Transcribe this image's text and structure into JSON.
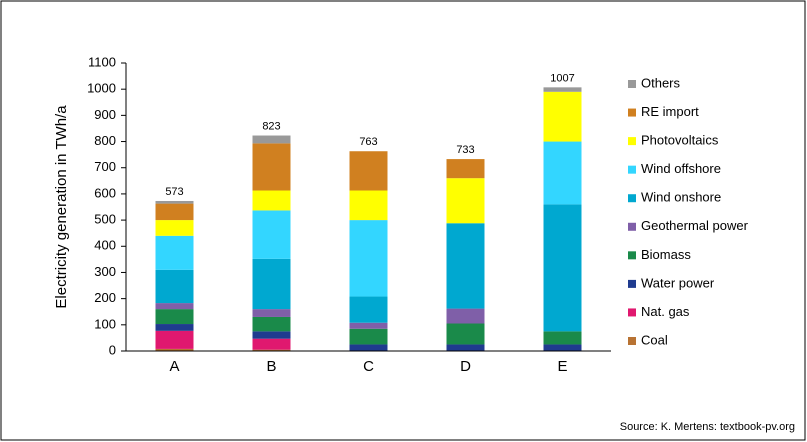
{
  "chart_data": {
    "type": "stacked_bar",
    "y_label": "Electricity generation in TWh/a",
    "source": "Source: K. Mertens: textbook-pv.org",
    "categories": [
      "A",
      "B",
      "C",
      "D",
      "E"
    ],
    "series": [
      {
        "name": "Coal",
        "color": "#b87333",
        "values": [
          8,
          5,
          0,
          0,
          0
        ]
      },
      {
        "name": "Nat. gas",
        "color": "#e0186f",
        "values": [
          69,
          42,
          0,
          0,
          0
        ]
      },
      {
        "name": "Water power",
        "color": "#1f3b8f",
        "values": [
          26,
          28,
          25,
          25,
          25
        ]
      },
      {
        "name": "Biomass",
        "color": "#1a8a4a",
        "values": [
          57,
          55,
          60,
          80,
          50
        ]
      },
      {
        "name": "Geothermal power",
        "color": "#7f5fa8",
        "values": [
          23,
          30,
          23,
          57,
          0
        ]
      },
      {
        "name": "Wind onshore",
        "color": "#00a8d0",
        "values": [
          127,
          192,
          100,
          326,
          485
        ]
      },
      {
        "name": "Wind offshore",
        "color": "#33d6ff",
        "values": [
          130,
          185,
          292,
          0,
          240
        ]
      },
      {
        "name": "Photovoltaics",
        "color": "#ffff00",
        "values": [
          60,
          76,
          113,
          172,
          190
        ]
      },
      {
        "name": "RE import",
        "color": "#d08020",
        "values": [
          63,
          180,
          150,
          73,
          0
        ]
      },
      {
        "name": "Others",
        "color": "#999999",
        "values": [
          10,
          30,
          0,
          0,
          17
        ]
      }
    ],
    "totals": [
      573,
      823,
      763,
      733,
      1007
    ],
    "ylim": [
      0,
      1100
    ],
    "yticks": [
      0,
      100,
      200,
      300,
      400,
      500,
      600,
      700,
      800,
      900,
      1000,
      1100
    ],
    "legend": "right"
  }
}
